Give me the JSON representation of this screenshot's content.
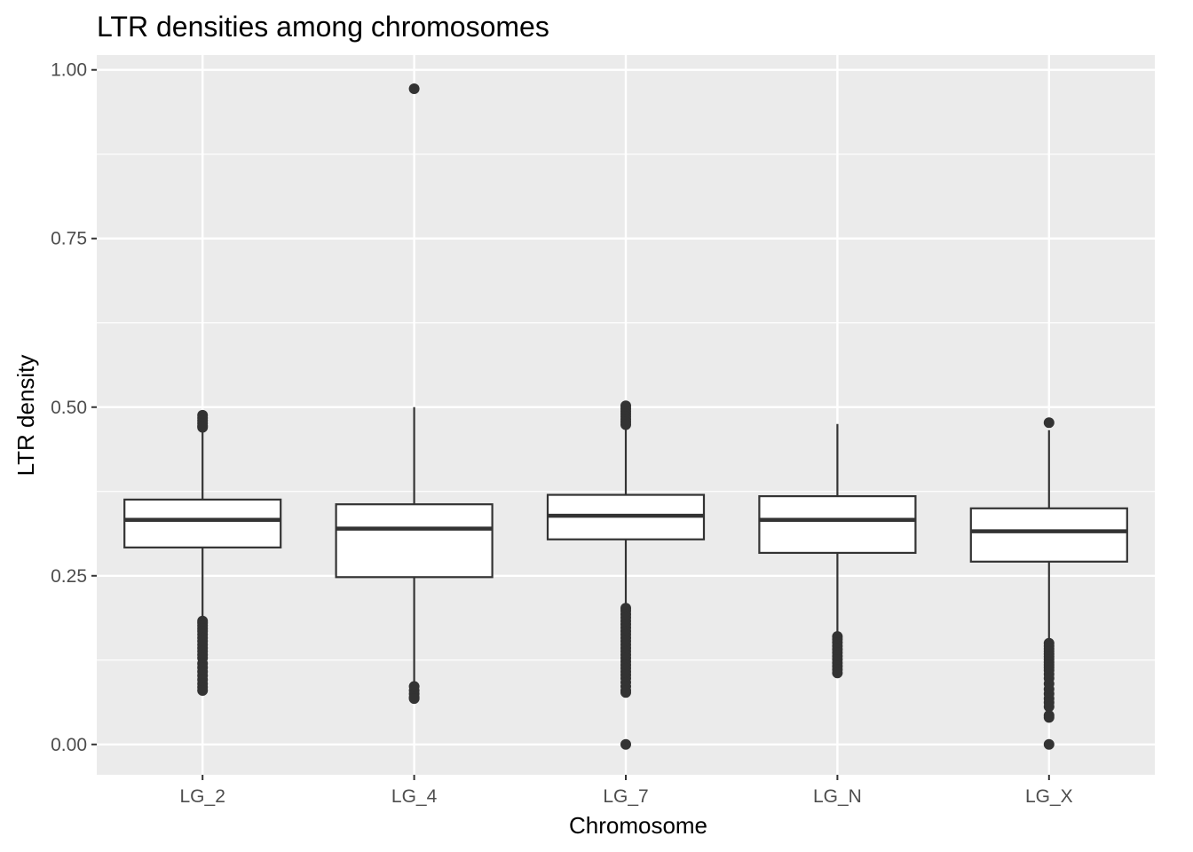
{
  "chart_data": {
    "type": "boxplot",
    "title": "LTR densities among chromosomes",
    "xlabel": "Chromosome",
    "ylabel": "LTR density",
    "ylim": [
      -0.045,
      1.022
    ],
    "yticks": [
      "0.00",
      "0.25",
      "0.50",
      "0.75",
      "1.00"
    ],
    "ytick_values": [
      0,
      0.25,
      0.5,
      0.75,
      1.0
    ],
    "grid": true,
    "panel_color": "#ebebeb",
    "grid_color": "#ffffff",
    "box_fill": "#ffffff",
    "box_stroke": "#333333",
    "categories": [
      "LG_2",
      "LG_4",
      "LG_7",
      "LG_N",
      "LG_X"
    ],
    "boxes": [
      {
        "category": "LG_2",
        "whisker_low": 0.185,
        "q1": 0.292,
        "median": 0.333,
        "q3": 0.363,
        "whisker_high": 0.466,
        "outliers": [
          0.488,
          0.484,
          0.48,
          0.476,
          0.472,
          0.47,
          0.183,
          0.18,
          0.176,
          0.172,
          0.168,
          0.163,
          0.158,
          0.153,
          0.148,
          0.143,
          0.138,
          0.133,
          0.128,
          0.12,
          0.114,
          0.108,
          0.102,
          0.096,
          0.09,
          0.085,
          0.08
        ]
      },
      {
        "category": "LG_4",
        "whisker_low": 0.088,
        "q1": 0.248,
        "median": 0.32,
        "q3": 0.356,
        "whisker_high": 0.5,
        "outliers": [
          0.972,
          0.086,
          0.08,
          0.075,
          0.07,
          0.068
        ]
      },
      {
        "category": "LG_7",
        "whisker_low": 0.204,
        "q1": 0.304,
        "median": 0.339,
        "q3": 0.37,
        "whisker_high": 0.468,
        "outliers": [
          0.502,
          0.498,
          0.494,
          0.49,
          0.486,
          0.482,
          0.478,
          0.474,
          0.202,
          0.198,
          0.193,
          0.188,
          0.183,
          0.178,
          0.173,
          0.168,
          0.163,
          0.158,
          0.153,
          0.148,
          0.143,
          0.138,
          0.133,
          0.128,
          0.123,
          0.118,
          0.113,
          0.108,
          0.103,
          0.098,
          0.092,
          0.086,
          0.08,
          0.077,
          0.0
        ]
      },
      {
        "category": "LG_N",
        "whisker_low": 0.162,
        "q1": 0.284,
        "median": 0.333,
        "q3": 0.368,
        "whisker_high": 0.475,
        "outliers": [
          0.16,
          0.156,
          0.151,
          0.146,
          0.141,
          0.136,
          0.131,
          0.126,
          0.121,
          0.116,
          0.111,
          0.106
        ]
      },
      {
        "category": "LG_X",
        "whisker_low": 0.152,
        "q1": 0.271,
        "median": 0.316,
        "q3": 0.35,
        "whisker_high": 0.466,
        "outliers": [
          0.477,
          0.15,
          0.146,
          0.142,
          0.138,
          0.134,
          0.13,
          0.126,
          0.122,
          0.118,
          0.114,
          0.11,
          0.104,
          0.098,
          0.09,
          0.082,
          0.075,
          0.068,
          0.062,
          0.056,
          0.043,
          0.04,
          0.0
        ]
      }
    ]
  }
}
